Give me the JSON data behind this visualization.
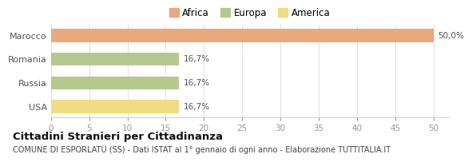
{
  "categories": [
    "USA",
    "Russia",
    "Romania",
    "Marocco"
  ],
  "values": [
    16.7,
    16.7,
    16.7,
    50.0
  ],
  "colors": [
    "#f0dc82",
    "#b5c98e",
    "#b5c98e",
    "#e8a97e"
  ],
  "labels": [
    "16,7%",
    "16,7%",
    "16,7%",
    "50,0%"
  ],
  "legend": [
    {
      "label": "Africa",
      "color": "#e8a97e"
    },
    {
      "label": "Europa",
      "color": "#b5c98e"
    },
    {
      "label": "America",
      "color": "#f0dc82"
    }
  ],
  "xlim": [
    0,
    52
  ],
  "xticks": [
    0,
    5,
    10,
    15,
    20,
    25,
    30,
    35,
    40,
    45,
    50
  ],
  "title": "Cittadini Stranieri per Cittadinanza",
  "subtitle": "COMUNE DI ESPORLATU (SS) - Dati ISTAT al 1° gennaio di ogni anno - Elaborazione TUTTITALIA.IT",
  "background_color": "#ffffff",
  "bar_height": 0.55,
  "label_fontsize": 7.5,
  "title_fontsize": 9.5,
  "subtitle_fontsize": 7.0,
  "tick_fontsize": 7.5,
  "ytick_fontsize": 8.0,
  "legend_fontsize": 8.5
}
